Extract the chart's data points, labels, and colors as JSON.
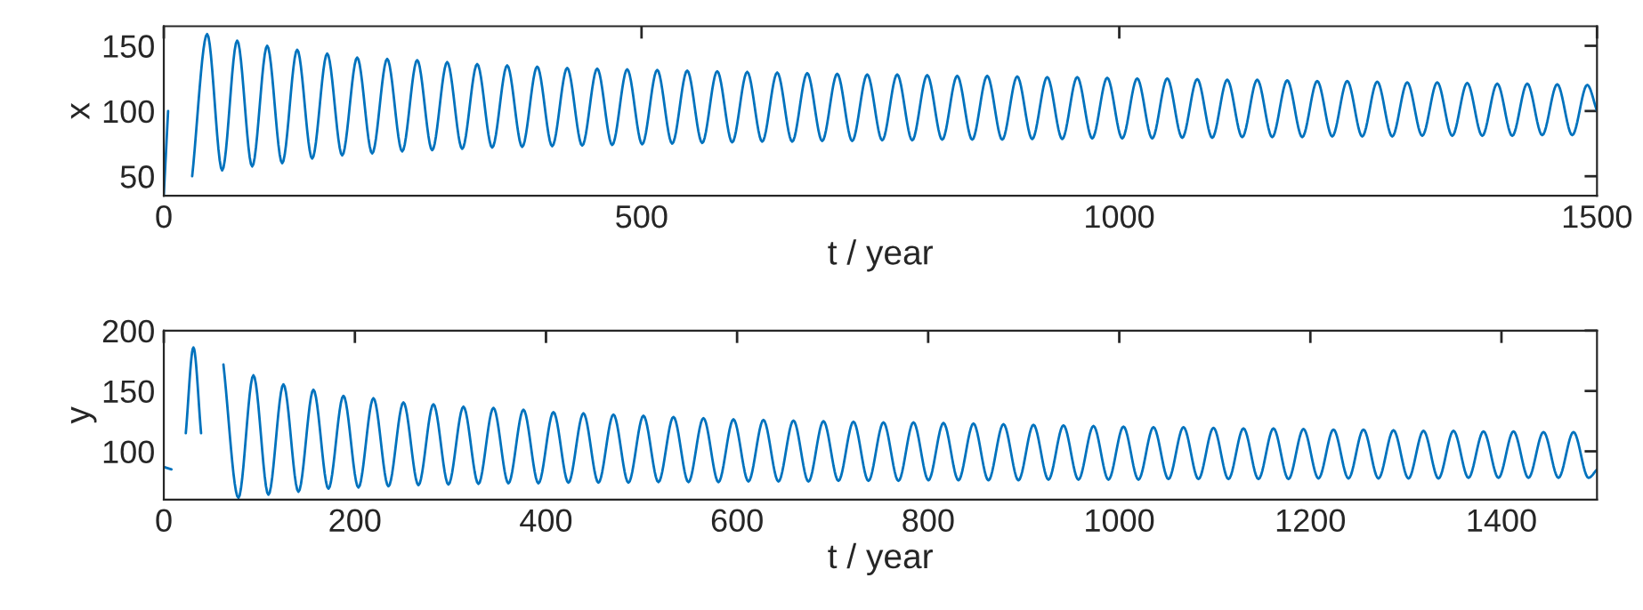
{
  "chart_data": [
    {
      "type": "line",
      "xlabel": "t / year",
      "ylabel": "x",
      "xlim": [
        0,
        1500
      ],
      "ylim": [
        35,
        165
      ],
      "xticks": [
        0,
        500,
        1000,
        1500
      ],
      "yticks": [
        50,
        100,
        150
      ],
      "line_style": "solid",
      "series": [
        {
          "color": "#0072bd",
          "x": [
            0,
            4.5,
            14,
            29.7,
            45.4,
            61.1,
            76.8,
            92.5,
            108.2,
            123.9,
            139.6,
            155.3,
            171,
            186.7,
            202.4,
            218.1,
            233.8,
            249.5,
            265.2,
            280.9,
            296.6,
            312.3,
            328,
            343.7,
            359.4,
            375.1,
            390.8,
            406.5,
            422.2,
            437.9,
            453.6,
            469.3,
            485,
            500.7,
            516.4,
            532.1,
            547.8,
            563.5,
            579.2,
            594.9,
            610.6,
            626.3,
            642,
            657.7,
            673.4,
            689.1,
            704.8,
            720.5,
            736.2,
            751.9,
            767.6,
            783.3,
            799,
            814.7,
            830.4,
            846.1,
            861.8,
            877.5,
            893.2,
            908.9,
            924.6,
            940.3,
            956,
            971.7,
            987.4,
            1003.1,
            1018.8,
            1034.5,
            1050.2,
            1065.9,
            1081.6,
            1097.3,
            1113,
            1128.7,
            1144.4,
            1160.1,
            1175.8,
            1191.5,
            1207.2,
            1222.9,
            1238.6,
            1254.3,
            1270,
            1285.7,
            1301.4,
            1317.1,
            1332.8,
            1348.5,
            1364.2,
            1379.9,
            1395.6,
            1411.3,
            1427,
            1442.7,
            1458.4,
            1474.1,
            1489.8,
            1500
          ],
          "values": [
            36,
            100,
            null,
            50,
            159,
            54.5,
            154,
            57.5,
            150,
            60,
            147,
            63.5,
            144,
            66,
            141,
            67.5,
            140,
            69,
            139,
            70,
            137.5,
            71,
            136,
            72,
            135,
            72.5,
            134,
            73,
            133,
            73.5,
            132.5,
            74,
            132,
            74.5,
            131.5,
            75,
            131,
            75.5,
            130.5,
            76,
            130,
            76.5,
            129.5,
            76.5,
            129,
            77,
            128.5,
            77,
            128,
            77.5,
            128,
            77.5,
            127.5,
            78,
            127,
            78,
            127,
            78,
            126.5,
            78.5,
            126,
            78.5,
            126,
            79,
            125.5,
            79,
            125,
            79,
            125,
            79.5,
            124.5,
            79.5,
            124,
            80,
            124,
            80,
            123.5,
            80,
            123,
            80.5,
            123,
            80.5,
            122.5,
            80.5,
            122,
            81,
            122,
            81,
            121.5,
            81,
            121,
            81,
            121,
            81.5,
            120.5,
            81.5,
            120,
            100
          ]
        }
      ]
    },
    {
      "type": "line",
      "xlabel": "t / year",
      "ylabel": "y",
      "xlim": [
        0,
        1500
      ],
      "ylim": [
        60,
        200
      ],
      "xticks": [
        0,
        200,
        400,
        600,
        800,
        1000,
        1200,
        1400
      ],
      "yticks": [
        100,
        150,
        200
      ],
      "line_style": "solid",
      "series": [
        {
          "color": "#0072bd",
          "x": [
            0,
            8,
            15.3,
            23,
            31,
            39,
            46.7,
            62.4,
            78.1,
            93.8,
            109.5,
            125.2,
            140.9,
            156.6,
            172.3,
            188,
            203.7,
            219.4,
            235.1,
            250.8,
            266.5,
            282.2,
            297.9,
            313.6,
            329.3,
            345,
            360.7,
            376.4,
            392.1,
            407.8,
            423.5,
            439.2,
            454.9,
            470.6,
            486.3,
            502,
            517.7,
            533.4,
            549.1,
            564.8,
            580.5,
            596.2,
            611.9,
            627.6,
            643.3,
            659,
            674.7,
            690.4,
            706.1,
            721.8,
            737.5,
            753.2,
            768.9,
            784.6,
            800.3,
            816,
            831.7,
            847.4,
            863.1,
            878.8,
            894.5,
            910.2,
            925.9,
            941.6,
            957.3,
            973,
            988.7,
            1004.4,
            1020.1,
            1035.8,
            1051.5,
            1067.2,
            1082.9,
            1098.6,
            1114.3,
            1130,
            1145.7,
            1161.4,
            1177.1,
            1192.8,
            1208.5,
            1224.2,
            1239.9,
            1255.6,
            1271.3,
            1287,
            1302.7,
            1318.4,
            1334.1,
            1349.8,
            1365.5,
            1381.2,
            1396.9,
            1412.6,
            1428.3,
            1444,
            1459.7,
            1475.4,
            1491.1,
            1500
          ],
          "values": [
            87,
            85,
            null,
            115,
            186,
            115,
            null,
            172,
            61.5,
            163,
            64,
            155.5,
            66.5,
            151,
            69,
            146,
            70,
            144,
            71,
            140.5,
            72,
            139,
            72.5,
            137,
            73,
            136,
            73.5,
            134.5,
            73.5,
            132.5,
            74,
            131.5,
            74,
            130.5,
            74,
            129.5,
            74.5,
            128.5,
            74.5,
            127.5,
            74.5,
            126.5,
            75,
            126,
            75,
            125.5,
            75,
            125,
            75.5,
            124.5,
            75.5,
            124,
            75.5,
            124,
            76,
            123.5,
            76,
            123,
            76,
            122.5,
            76,
            122,
            76.5,
            121.5,
            76.5,
            121,
            76.5,
            120.5,
            76.5,
            120,
            77,
            120,
            77,
            119.5,
            77,
            119,
            77,
            119,
            77,
            118.5,
            77.5,
            118,
            77.5,
            118,
            77.5,
            117.5,
            77.5,
            117,
            77.5,
            117,
            78,
            116.5,
            78,
            116.5,
            78,
            116,
            78,
            116,
            78,
            85
          ]
        }
      ]
    }
  ]
}
